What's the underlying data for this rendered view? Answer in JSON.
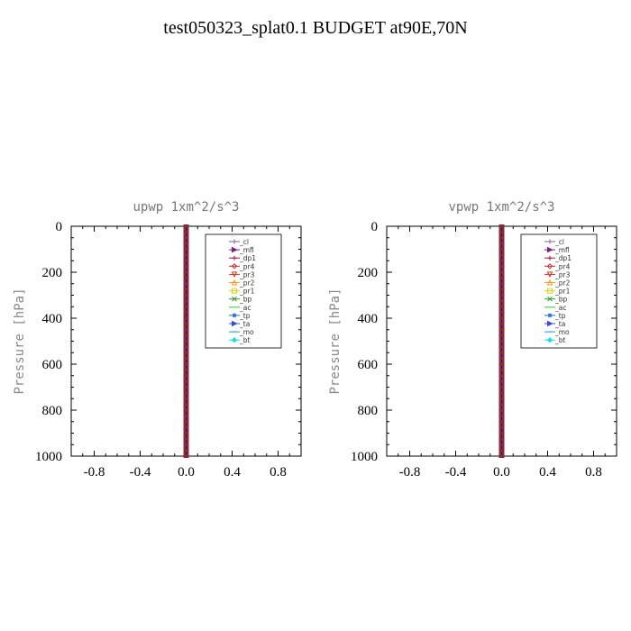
{
  "page": {
    "title": "test050323_splat0.1  BUDGET at90E,70N"
  },
  "chart_data": [
    {
      "type": "line",
      "title": "upwp   1xm^2/s^3",
      "ylabel": "Pressure [hPa]",
      "xlabel": "",
      "xlim": [
        -1.0,
        1.0
      ],
      "ylim": [
        1000,
        0
      ],
      "y_inverted": true,
      "xticks": [
        -0.8,
        -0.4,
        0.0,
        0.4,
        0.8
      ],
      "xtick_labels": [
        "-0.8",
        "-0.4",
        "0.0",
        "0.4",
        "0.8"
      ],
      "yticks": [
        0,
        200,
        400,
        600,
        800,
        1000
      ],
      "ytick_labels": [
        "0",
        "200",
        "400",
        "600",
        "800",
        "1000"
      ],
      "legend_placement": "top-right",
      "series": [
        {
          "name": "_cl",
          "color": "#8a5aa8",
          "marker": "plus"
        },
        {
          "name": "_mfl",
          "color": "#7a1f8a",
          "marker": "triangle-right"
        },
        {
          "name": "_dp1",
          "color": "#b0143c",
          "marker": "plus"
        },
        {
          "name": "_pr4",
          "color": "#cc2a2a",
          "marker": "diamond"
        },
        {
          "name": "_pr3",
          "color": "#e0301e",
          "marker": "triangle-down"
        },
        {
          "name": "_pr2",
          "color": "#ff9a1a",
          "marker": "triangle-up"
        },
        {
          "name": "_pr1",
          "color": "#e8cc1a",
          "marker": "square"
        },
        {
          "name": "_bp",
          "color": "#2a9a2a",
          "marker": "x"
        },
        {
          "name": "_ac",
          "color": "#2ad02a",
          "marker": "circle"
        },
        {
          "name": "_tp",
          "color": "#1a6ad0",
          "marker": "star"
        },
        {
          "name": "_ta",
          "color": "#3a4ae0",
          "marker": "triangle-right"
        },
        {
          "name": "_mo",
          "color": "#1aa0e0",
          "marker": "dash"
        },
        {
          "name": "_bt",
          "color": "#1ae0e0",
          "marker": "filled-diamond"
        }
      ],
      "profile": {
        "x": 0.0,
        "levels": [
          0,
          25,
          50,
          75,
          100,
          125,
          150,
          175,
          200,
          225,
          250,
          275,
          300,
          325,
          350,
          375,
          400,
          425,
          450,
          475,
          500,
          525,
          550,
          575,
          600,
          625,
          650,
          675,
          700,
          725,
          750,
          775,
          800,
          825,
          850,
          875,
          900,
          925,
          950,
          975,
          1000
        ]
      }
    },
    {
      "type": "line",
      "title": "vpwp   1xm^2/s^3",
      "ylabel": "Pressure [hPa]",
      "xlabel": "",
      "xlim": [
        -1.0,
        1.0
      ],
      "ylim": [
        1000,
        0
      ],
      "y_inverted": true,
      "xticks": [
        -0.8,
        -0.4,
        0.0,
        0.4,
        0.8
      ],
      "xtick_labels": [
        "-0.8",
        "-0.4",
        "0.0",
        "0.4",
        "0.8"
      ],
      "yticks": [
        0,
        200,
        400,
        600,
        800,
        1000
      ],
      "ytick_labels": [
        "0",
        "200",
        "400",
        "600",
        "800",
        "1000"
      ],
      "legend_placement": "top-right",
      "series": [
        {
          "name": "_cl",
          "color": "#8a5aa8",
          "marker": "plus"
        },
        {
          "name": "_mfl",
          "color": "#7a1f8a",
          "marker": "triangle-right"
        },
        {
          "name": "_dp1",
          "color": "#b0143c",
          "marker": "plus"
        },
        {
          "name": "_pr4",
          "color": "#cc2a2a",
          "marker": "diamond"
        },
        {
          "name": "_pr3",
          "color": "#e0301e",
          "marker": "triangle-down"
        },
        {
          "name": "_pr2",
          "color": "#ff9a1a",
          "marker": "triangle-up"
        },
        {
          "name": "_pr1",
          "color": "#e8cc1a",
          "marker": "square"
        },
        {
          "name": "_bp",
          "color": "#2a9a2a",
          "marker": "x"
        },
        {
          "name": "_ac",
          "color": "#2ad02a",
          "marker": "circle"
        },
        {
          "name": "_tp",
          "color": "#1a6ad0",
          "marker": "star"
        },
        {
          "name": "_ta",
          "color": "#3a4ae0",
          "marker": "triangle-right"
        },
        {
          "name": "_mo",
          "color": "#1aa0e0",
          "marker": "dash"
        },
        {
          "name": "_bt",
          "color": "#1ae0e0",
          "marker": "filled-diamond"
        }
      ],
      "profile": {
        "x": 0.0,
        "levels": [
          0,
          25,
          50,
          75,
          100,
          125,
          150,
          175,
          200,
          225,
          250,
          275,
          300,
          325,
          350,
          375,
          400,
          425,
          450,
          475,
          500,
          525,
          550,
          575,
          600,
          625,
          650,
          675,
          700,
          725,
          750,
          775,
          800,
          825,
          850,
          875,
          900,
          925,
          950,
          975,
          1000
        ]
      }
    }
  ]
}
